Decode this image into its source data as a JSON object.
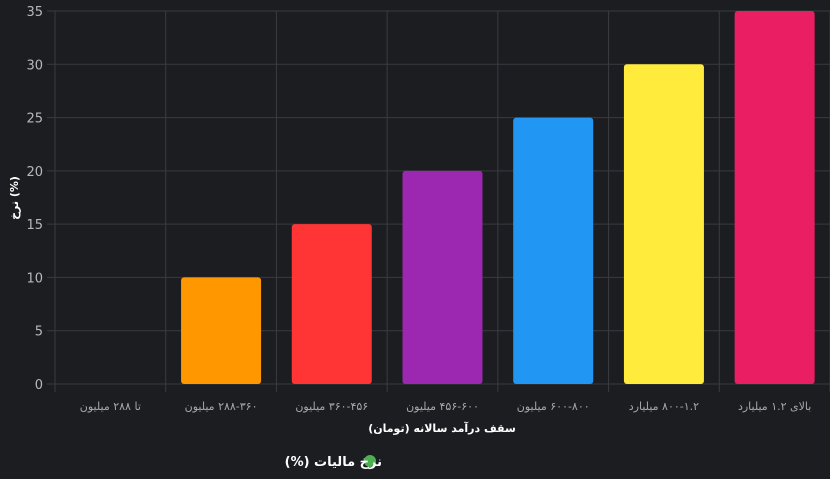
{
  "chart_data": {
    "type": "bar",
    "categories": [
      "تا ۲۸۸ میلیون",
      "۲۸۸-۳۶۰ میلیون",
      "۳۶۰-۴۵۶ میلیون",
      "۴۵۶-۶۰۰ میلیون",
      "۶۰۰-۸۰۰ میلیون",
      "۸۰۰-۱.۲ میلیارد",
      "بالای ۱.۲ میلیارد"
    ],
    "series": [
      {
        "name": "نرخ مالیات (%)",
        "values": [
          0,
          10,
          15,
          20,
          25,
          30,
          35
        ]
      }
    ],
    "colors": [
      "#9e9e9e",
      "#ff9800",
      "#ff3535",
      "#9c27b0",
      "#2196f3",
      "#ffeb3b",
      "#e91e63"
    ],
    "legend_color": "#4caf50",
    "xlabel": "سقف درآمد سالانه (تومان)",
    "ylabel": "نرخ (%)",
    "ylim": [
      0,
      35
    ],
    "yticks": [
      "0",
      "5",
      "10",
      "15",
      "20",
      "25",
      "30",
      "35"
    ],
    "grid": true,
    "legend_position": "bottom"
  }
}
